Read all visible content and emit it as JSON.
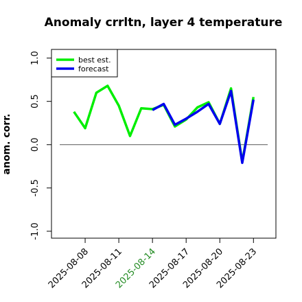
{
  "chart_data": {
    "type": "line",
    "title": "Anomaly crrltn, layer 4 temperature",
    "y_label": "anom. corr.",
    "x": [
      "2025-08-07",
      "2025-08-08",
      "2025-08-09",
      "2025-08-10",
      "2025-08-11",
      "2025-08-12",
      "2025-08-13",
      "2025-08-14",
      "2025-08-15",
      "2025-08-16",
      "2025-08-17",
      "2025-08-18",
      "2025-08-19",
      "2025-08-20",
      "2025-08-21",
      "2025-08-22",
      "2025-08-23"
    ],
    "series": [
      {
        "name": "best est.",
        "color": "#00ee00",
        "values": [
          0.38,
          0.19,
          0.6,
          0.68,
          0.45,
          0.1,
          0.42,
          0.41,
          0.46,
          0.21,
          0.29,
          0.43,
          0.49,
          0.24,
          0.65,
          -0.2,
          0.55
        ]
      },
      {
        "name": "forecast",
        "color": "#0000ee",
        "values": [
          null,
          null,
          null,
          null,
          null,
          null,
          null,
          0.4,
          0.47,
          0.23,
          0.3,
          0.38,
          0.47,
          0.24,
          0.62,
          -0.21,
          0.52
        ]
      }
    ],
    "xlim": [
      "2025-08-05",
      "2025-08-25"
    ],
    "xticks": [
      "2025-08-08",
      "2025-08-11",
      "2025-08-14",
      "2025-08-17",
      "2025-08-20",
      "2025-08-23"
    ],
    "highlight_tick": "2025-08-14",
    "highlight_color": "#228b22",
    "ylim": [
      -1.08,
      1.1
    ],
    "yticks": [
      {
        "value": -1,
        "label": "-1.0"
      },
      {
        "value": -0.5,
        "label": "-0.5"
      },
      {
        "value": 0,
        "label": "0.0"
      },
      {
        "value": 0.5,
        "label": "0.5"
      },
      {
        "value": 1,
        "label": "1.0"
      }
    ],
    "hline": 0,
    "legend": "top-left"
  }
}
